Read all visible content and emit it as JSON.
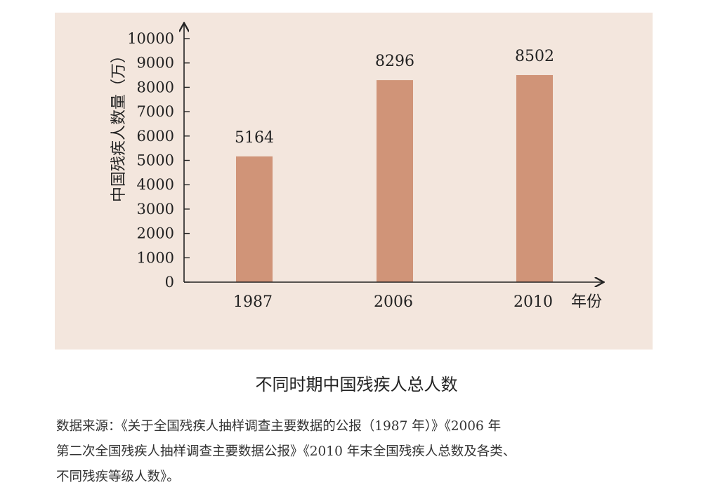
{
  "chart_data": {
    "type": "bar",
    "categories": [
      "1987",
      "2006",
      "2010"
    ],
    "values": [
      5164,
      8296,
      8502
    ],
    "data_labels": [
      "5164",
      "8296",
      "8502"
    ],
    "ylabel": "中国残疾人数量（万）",
    "xlabel": "年份",
    "ylim": [
      0,
      10000
    ],
    "yticks": [
      0,
      1000,
      2000,
      3000,
      4000,
      5000,
      6000,
      7000,
      8000,
      9000,
      10000
    ],
    "grid": false,
    "colors": {
      "bar": "#d09478",
      "panel": "#f3e6dd",
      "axis": "#222222"
    }
  },
  "caption": "不同时期中国残疾人总人数",
  "source": {
    "lines": [
      "数据来源：《关于全国残疾人抽样调查主要数据的公报（1987 年）》《2006 年",
      "第二次全国残疾人抽样调查主要数据公报》《2010 年末全国残疾人总数及各类、",
      "不同残疾等级人数》。"
    ]
  }
}
